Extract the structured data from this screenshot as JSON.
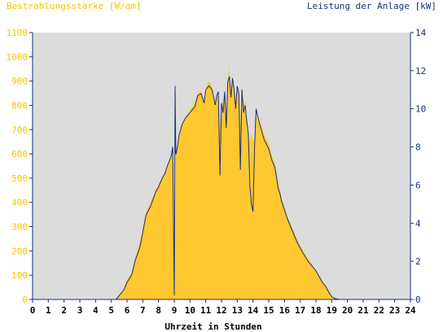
{
  "chart_data": {
    "type": "area",
    "title_left": "Bestrahlungsstärke [W/qm]",
    "title_right": "Leistung der Anlage [kW]",
    "xlabel": "Uhrzeit in Stunden",
    "xlim": [
      0,
      24
    ],
    "x_ticks": [
      "0",
      "1",
      "2",
      "3",
      "4",
      "5",
      "6",
      "7",
      "8",
      "9",
      "10",
      "11",
      "12",
      "13",
      "14",
      "15",
      "16",
      "17",
      "18",
      "19",
      "20",
      "21",
      "22",
      "23",
      "24"
    ],
    "y_left_lim": [
      0,
      1100
    ],
    "y_left_ticks": [
      "0",
      "100",
      "200",
      "300",
      "400",
      "500",
      "600",
      "700",
      "800",
      "900",
      "1000",
      "1100"
    ],
    "y_right_lim": [
      0,
      14
    ],
    "y_right_ticks": [
      "0",
      "2",
      "4",
      "6",
      "8",
      "10",
      "12",
      "14"
    ],
    "grid": false,
    "colors": {
      "irradiance": "#ffc830",
      "power": "#1a2f7a",
      "plot_bg": "#dcdcdc",
      "axis": "#1a2f7a",
      "left_label": "#f5c400",
      "right_label": "#1a2f7a"
    },
    "series": [
      {
        "unit": "W/qm",
        "axis": "left",
        "x": [
          0,
          5.3,
          5.5,
          5.8,
          6.0,
          6.3,
          6.5,
          6.8,
          7.0,
          7.2,
          7.5,
          7.8,
          8.0,
          8.2,
          8.4,
          8.6,
          8.8,
          8.9,
          9.0,
          9.02,
          9.05,
          9.1,
          9.2,
          9.3,
          9.5,
          9.7,
          10.0,
          10.3,
          10.5,
          10.7,
          10.9,
          11.0,
          11.2,
          11.4,
          11.6,
          11.7,
          11.8,
          11.9,
          12.0,
          12.1,
          12.2,
          12.3,
          12.4,
          12.5,
          12.55,
          12.6,
          12.7,
          12.8,
          12.9,
          13.0,
          13.1,
          13.2,
          13.3,
          13.4,
          13.5,
          13.6,
          13.7,
          13.8,
          13.9,
          14.0,
          14.1,
          14.2,
          14.3,
          14.5,
          14.7,
          15.0,
          15.2,
          15.4,
          15.5,
          15.6,
          15.7,
          15.8,
          16.0,
          16.2,
          16.4,
          16.6,
          16.8,
          17.0,
          17.2,
          17.5,
          17.8,
          18.0,
          18.2,
          18.4,
          18.6,
          18.8,
          19.0,
          19.2,
          19.5,
          20.0,
          24
        ],
        "values": [
          0,
          0,
          20,
          45,
          80,
          110,
          170,
          230,
          290,
          360,
          400,
          450,
          470,
          500,
          520,
          560,
          590,
          640,
          0,
          280,
          20,
          600,
          640,
          680,
          720,
          750,
          780,
          810,
          850,
          860,
          820,
          870,
          900,
          880,
          800,
          840,
          860,
          700,
          820,
          780,
          860,
          720,
          900,
          960,
          900,
          850,
          920,
          880,
          810,
          870,
          860,
          720,
          880,
          780,
          820,
          760,
          700,
          650,
          680,
          660,
          650,
          760,
          740,
          720,
          680,
          640,
          590,
          560,
          520,
          480,
          460,
          420,
          380,
          340,
          310,
          280,
          250,
          220,
          200,
          170,
          140,
          120,
          100,
          80,
          60,
          40,
          15,
          5,
          0,
          0,
          0
        ]
      },
      {
        "unit": "kW",
        "axis": "right",
        "x": [
          0,
          5.3,
          5.5,
          5.8,
          6.0,
          6.3,
          6.5,
          6.8,
          7.0,
          7.2,
          7.5,
          7.8,
          8.0,
          8.2,
          8.4,
          8.6,
          8.8,
          8.9,
          9.0,
          9.02,
          9.05,
          9.1,
          9.2,
          9.3,
          9.5,
          9.7,
          10.0,
          10.3,
          10.5,
          10.7,
          10.9,
          11.0,
          11.2,
          11.4,
          11.6,
          11.7,
          11.8,
          11.9,
          12.0,
          12.1,
          12.2,
          12.3,
          12.4,
          12.5,
          12.55,
          12.6,
          12.7,
          12.8,
          12.9,
          13.0,
          13.1,
          13.2,
          13.3,
          13.4,
          13.5,
          13.6,
          13.7,
          13.8,
          13.9,
          14.0,
          14.1,
          14.2,
          14.3,
          14.5,
          14.7,
          15.0,
          15.2,
          15.4,
          15.5,
          15.6,
          15.7,
          15.8,
          16.0,
          16.2,
          16.4,
          16.6,
          16.8,
          17.0,
          17.2,
          17.5,
          17.8,
          18.0,
          18.2,
          18.4,
          18.6,
          18.8,
          19.0,
          19.2,
          19.5,
          20.0,
          24
        ],
        "values": [
          0,
          0,
          0.2,
          0.5,
          0.9,
          1.3,
          2.0,
          2.7,
          3.5,
          4.4,
          4.9,
          5.6,
          5.9,
          6.3,
          6.6,
          7.1,
          7.5,
          8.0,
          0.2,
          3.5,
          11.2,
          7.6,
          8.0,
          8.6,
          9.2,
          9.5,
          9.8,
          10.1,
          10.7,
          10.8,
          10.3,
          11.0,
          11.2,
          11.0,
          10.2,
          10.7,
          10.9,
          6.5,
          10.3,
          9.8,
          10.9,
          9.0,
          11.4,
          11.7,
          11.2,
          10.6,
          11.6,
          11.0,
          10.0,
          11.2,
          10.8,
          6.8,
          11.0,
          9.8,
          10.2,
          9.4,
          8.7,
          6.0,
          5.0,
          4.6,
          8.0,
          10.0,
          9.6,
          9.0,
          8.4,
          7.9,
          7.3,
          6.9,
          6.4,
          5.8,
          5.6,
          5.2,
          4.7,
          4.2,
          3.8,
          3.4,
          3.0,
          2.7,
          2.4,
          2.0,
          1.7,
          1.5,
          1.2,
          0.9,
          0.7,
          0.4,
          0.15,
          0.05,
          0,
          0,
          0
        ]
      }
    ]
  }
}
